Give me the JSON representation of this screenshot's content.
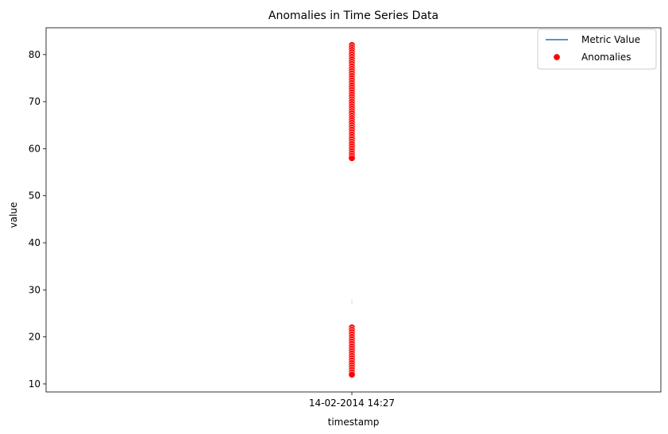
{
  "chart_data": {
    "type": "scatter",
    "title": "Anomalies in Time Series Data",
    "xlabel": "timestamp",
    "ylabel": "value",
    "x_categories": [
      "14-02-2014 14:27"
    ],
    "ylim": [
      8.3,
      85.7
    ],
    "yticks": [
      10,
      20,
      30,
      40,
      50,
      60,
      70,
      80
    ],
    "grid": false,
    "legend": {
      "position": "top-right",
      "entries": [
        {
          "label": "Metric Value",
          "kind": "line",
          "color": "#1f77b4"
        },
        {
          "label": "Anomalies",
          "kind": "marker",
          "color": "#ff0000"
        }
      ]
    },
    "series": [
      {
        "name": "Metric Value",
        "type": "line",
        "color": "#1f77b4",
        "x": [
          "14-02-2014 14:27",
          "14-02-2014 14:27"
        ],
        "y": [
          27.0,
          28.0
        ]
      },
      {
        "name": "Anomalies",
        "type": "scatter",
        "color": "#ff0000",
        "x": "14-02-2014 14:27",
        "y": [
          82.0,
          81.5,
          81.0,
          80.5,
          80.0,
          79.5,
          79.0,
          78.5,
          78.0,
          77.5,
          77.0,
          76.5,
          76.0,
          75.5,
          75.0,
          74.5,
          74.0,
          73.5,
          73.0,
          72.5,
          72.0,
          71.5,
          71.0,
          70.5,
          70.0,
          69.5,
          69.0,
          68.5,
          68.0,
          67.5,
          67.0,
          66.5,
          66.0,
          65.5,
          65.0,
          64.5,
          64.0,
          63.5,
          63.0,
          62.5,
          62.0,
          61.5,
          61.0,
          60.5,
          60.0,
          59.5,
          59.0,
          58.5,
          58.0,
          22.0,
          21.5,
          21.0,
          20.5,
          20.0,
          19.5,
          19.0,
          18.5,
          18.0,
          17.5,
          17.0,
          16.5,
          16.0,
          15.5,
          15.0,
          14.5,
          14.0,
          13.5,
          13.0,
          12.5,
          12.0
        ]
      }
    ]
  }
}
